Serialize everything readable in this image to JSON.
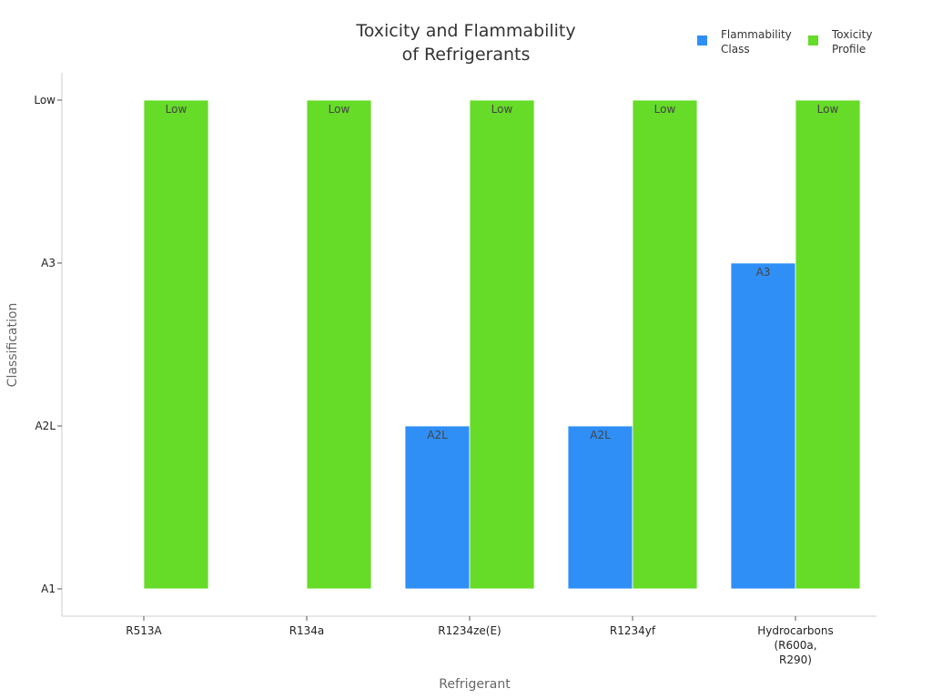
{
  "chart_data": {
    "type": "bar",
    "title": [
      "Toxicity and Flammability",
      "of Refrigerants"
    ],
    "xlabel": "Refrigerant",
    "ylabel": "Classification",
    "y_categories": [
      "A1",
      "A2L",
      "A3",
      "Low"
    ],
    "categories": [
      [
        "R513A"
      ],
      [
        "R134a"
      ],
      [
        "R1234ze(E)"
      ],
      [
        "R1234yf"
      ],
      [
        "Hydrocarbons",
        "(R600a,",
        "R290)"
      ]
    ],
    "series": [
      {
        "name": [
          "Flammability",
          "Class"
        ],
        "color": "#2f8ff7",
        "values": [
          null,
          null,
          "A2L",
          "A2L",
          "A3"
        ],
        "labels": [
          "",
          "",
          "A2L",
          "A2L",
          "A3"
        ]
      },
      {
        "name": [
          "Toxicity",
          "Profile"
        ],
        "color": "#66db28",
        "values": [
          "Low",
          "Low",
          "Low",
          "Low",
          "Low"
        ],
        "labels": [
          "Low",
          "Low",
          "Low",
          "Low",
          "Low"
        ]
      }
    ],
    "legend_position": "top-right",
    "grid": false
  }
}
